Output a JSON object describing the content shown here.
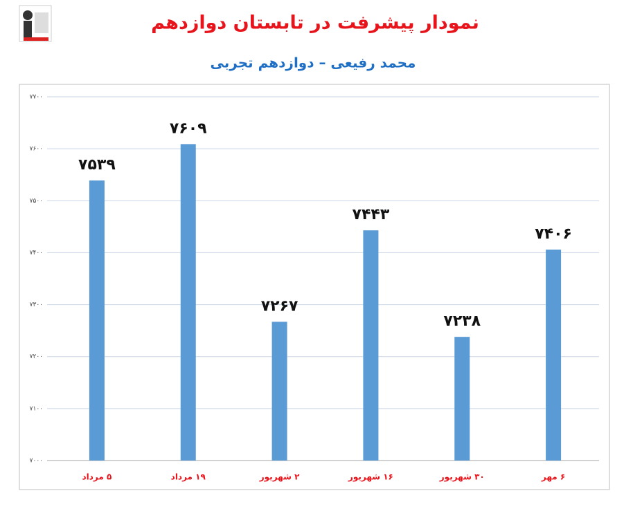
{
  "chart_data": {
    "type": "bar",
    "title": "نمودار پیشرفت در تابستان دوازدهم",
    "subtitle": "محمد رفیعی – دوازدهم تجربی",
    "categories": [
      "۵ مرداد",
      "۱۹ مرداد",
      "۲ شهریور",
      "۱۶ شهریور",
      "۳۰ شهریور",
      "۶ مهر"
    ],
    "values": [
      7539,
      7609,
      7267,
      7443,
      7238,
      7406
    ],
    "value_labels": [
      "۷۵۳۹",
      "۷۶۰۹",
      "۷۲۶۷",
      "۷۴۴۳",
      "۷۲۳۸",
      "۷۴۰۶"
    ],
    "color": "#5b9bd5",
    "ylim": [
      7000,
      7700
    ],
    "yticks": [
      {
        "value": 7000,
        "label": "۷۰۰۰"
      },
      {
        "value": 7100,
        "label": "۷۱۰۰"
      },
      {
        "value": 7200,
        "label": "۷۲۰۰"
      },
      {
        "value": 7300,
        "label": "۷۳۰۰"
      },
      {
        "value": 7400,
        "label": "۷۴۰۰"
      },
      {
        "value": 7500,
        "label": "۷۵۰۰"
      },
      {
        "value": 7600,
        "label": "۷۶۰۰"
      },
      {
        "value": 7700,
        "label": "۷۷۰۰"
      }
    ],
    "grid": true
  }
}
